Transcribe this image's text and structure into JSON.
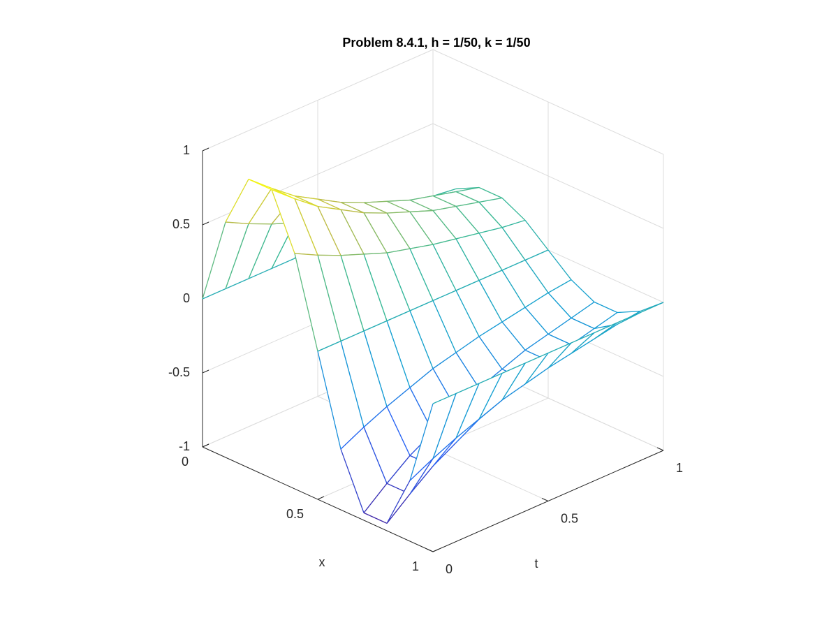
{
  "chart_data": {
    "type": "mesh",
    "title": "Problem 8.4.1, h = 1/50, k = 1/50",
    "xlabel": "x",
    "ylabel": "t",
    "x": [
      0,
      0.1,
      0.2,
      0.3,
      0.4,
      0.5,
      0.6,
      0.7,
      0.8,
      0.9,
      1
    ],
    "y": [
      0,
      0.1,
      0.2,
      0.3,
      0.4,
      0.5,
      0.6,
      0.7,
      0.8,
      0.9,
      1
    ],
    "z": [
      [
        0,
        0,
        0,
        0,
        0,
        0,
        0,
        0,
        0,
        0,
        0
      ],
      [
        0.59,
        0.51,
        0.44,
        0.38,
        0.32,
        0.28,
        0.24,
        0.21,
        0.18,
        0.15,
        0.13
      ],
      [
        0.95,
        0.82,
        0.7,
        0.61,
        0.52,
        0.45,
        0.39,
        0.33,
        0.29,
        0.25,
        0.21
      ],
      [
        0.95,
        0.82,
        0.7,
        0.61,
        0.52,
        0.45,
        0.39,
        0.33,
        0.29,
        0.25,
        0.21
      ],
      [
        0.59,
        0.51,
        0.44,
        0.38,
        0.32,
        0.28,
        0.24,
        0.21,
        0.18,
        0.15,
        0.13
      ],
      [
        0,
        0,
        0,
        0,
        0,
        0,
        0,
        0,
        0,
        0,
        0
      ],
      [
        -0.59,
        -0.51,
        -0.44,
        -0.38,
        -0.32,
        -0.28,
        -0.24,
        -0.21,
        -0.18,
        -0.15,
        -0.13
      ],
      [
        -0.95,
        -0.82,
        -0.7,
        -0.61,
        -0.52,
        -0.45,
        -0.39,
        -0.33,
        -0.29,
        -0.25,
        -0.21
      ],
      [
        -0.95,
        -0.82,
        -0.7,
        -0.61,
        -0.52,
        -0.45,
        -0.39,
        -0.33,
        -0.29,
        -0.25,
        -0.21
      ],
      [
        -0.59,
        -0.51,
        -0.44,
        -0.38,
        -0.32,
        -0.28,
        -0.24,
        -0.21,
        -0.18,
        -0.15,
        -0.13
      ],
      [
        0,
        0,
        0,
        0,
        0,
        0,
        0,
        0,
        0,
        0,
        0
      ]
    ],
    "xlim": [
      0,
      1
    ],
    "ylim": [
      0,
      1
    ],
    "zlim": [
      -1,
      1
    ],
    "xticks": [
      0,
      0.5,
      1
    ],
    "yticks": [
      0,
      0.5,
      1
    ],
    "zticks": [
      -1,
      -0.5,
      0,
      0.5,
      1
    ],
    "grid": true,
    "colormap": "parula"
  }
}
